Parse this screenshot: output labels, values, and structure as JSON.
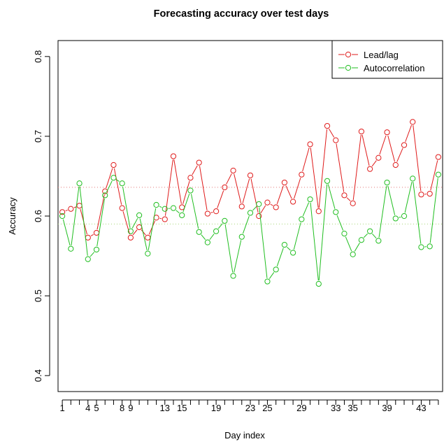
{
  "chart_data": {
    "type": "line",
    "title": "Forecasting accuracy over test days",
    "xlabel": "Day index",
    "ylabel": "Accuracy",
    "xlim": [
      0.5,
      45.5
    ],
    "ylim": [
      0.38,
      0.82
    ],
    "x_tick_labels": [
      "1",
      "4",
      "5",
      "8",
      "9",
      "13",
      "15",
      "19",
      "23",
      "25",
      "29",
      "33",
      "35",
      "39",
      "43"
    ],
    "x_tick_label_positions": [
      1,
      4,
      5,
      8,
      9,
      13,
      15,
      19,
      23,
      25,
      29,
      33,
      35,
      39,
      43
    ],
    "y_ticks": [
      0.4,
      0.5,
      0.6,
      0.7,
      0.8
    ],
    "y_tick_labels": [
      "0.4",
      "0.5",
      "0.6",
      "0.7",
      "0.8"
    ],
    "legend_position": "top-right",
    "colors": {
      "lead_lag": "#DF1A1A",
      "autocorrelation": "#1FBE1F",
      "mean_lead_lag": "#E37777",
      "mean_autocorrelation": "#A8D678"
    },
    "series": [
      {
        "name": "Lead/lag",
        "x": [
          1,
          2,
          3,
          4,
          5,
          6,
          7,
          8,
          9,
          10,
          11,
          12,
          13,
          14,
          15,
          16,
          17,
          18,
          19,
          20,
          21,
          22,
          23,
          24,
          25,
          26,
          27,
          28,
          29,
          30,
          31,
          32,
          33,
          34,
          35,
          36,
          37,
          38,
          39,
          40,
          41,
          42,
          43,
          44,
          45
        ],
        "values": [
          0.605,
          0.609,
          0.613,
          0.573,
          0.579,
          0.631,
          0.664,
          0.61,
          0.573,
          0.586,
          0.573,
          0.598,
          0.596,
          0.675,
          0.611,
          0.648,
          0.667,
          0.603,
          0.606,
          0.636,
          0.657,
          0.612,
          0.651,
          0.6,
          0.617,
          0.611,
          0.642,
          0.618,
          0.652,
          0.69,
          0.606,
          0.713,
          0.695,
          0.626,
          0.616,
          0.706,
          0.659,
          0.673,
          0.705,
          0.664,
          0.689,
          0.718,
          0.627,
          0.628,
          0.674
        ]
      },
      {
        "name": "Autocorrelation",
        "x": [
          1,
          2,
          3,
          4,
          5,
          6,
          7,
          8,
          9,
          10,
          11,
          12,
          13,
          14,
          15,
          16,
          17,
          18,
          19,
          20,
          21,
          22,
          23,
          24,
          25,
          26,
          27,
          28,
          29,
          30,
          31,
          32,
          33,
          34,
          35,
          36,
          37,
          38,
          39,
          40,
          41,
          42,
          43,
          44,
          45
        ],
        "values": [
          0.6,
          0.559,
          0.641,
          0.546,
          0.558,
          0.626,
          0.648,
          0.641,
          0.581,
          0.601,
          0.553,
          0.614,
          0.609,
          0.61,
          0.601,
          0.632,
          0.58,
          0.567,
          0.581,
          0.594,
          0.525,
          0.574,
          0.604,
          0.615,
          0.518,
          0.533,
          0.564,
          0.554,
          0.596,
          0.621,
          0.515,
          0.644,
          0.605,
          0.578,
          0.552,
          0.57,
          0.581,
          0.569,
          0.642,
          0.597,
          0.6,
          0.647,
          0.561,
          0.562,
          0.652
        ]
      }
    ],
    "hlines": [
      {
        "series": "Lead/lag",
        "value": 0.636
      },
      {
        "series": "Autocorrelation",
        "value": 0.59
      }
    ]
  }
}
